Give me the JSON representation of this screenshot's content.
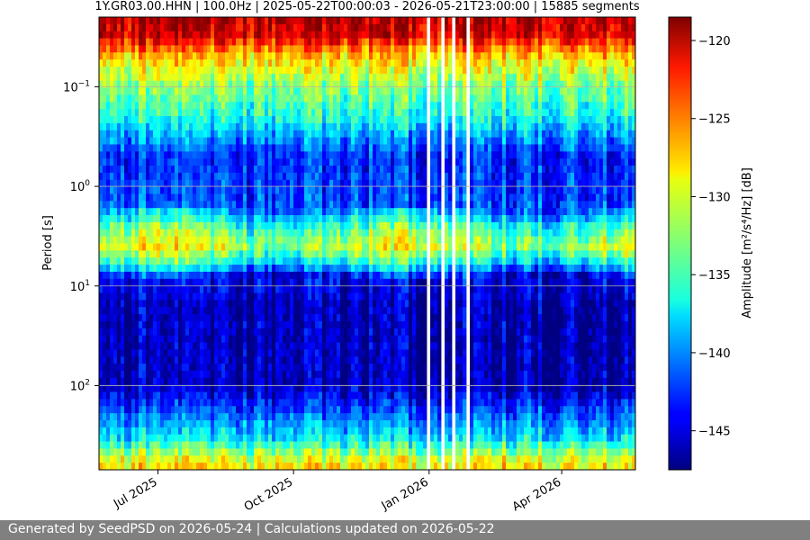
{
  "chart_data": {
    "type": "heatmap",
    "title": "1Y.GR03.00.HHN | 100.0Hz | 2025-05-22T00:00:03 - 2026-05-21T23:00:00 | 15885 segments",
    "ylabel": "Period [s]",
    "y_scale": "log",
    "y_inverted": true,
    "ylim": [
      0.02,
      700
    ],
    "y_ticks": [
      {
        "value": 0.1,
        "base": "10",
        "exp": "−1"
      },
      {
        "value": 1,
        "base": "10",
        "exp": "0"
      },
      {
        "value": 10,
        "base": "10",
        "exp": "1"
      },
      {
        "value": 100,
        "base": "10",
        "exp": "2"
      }
    ],
    "x_start": "2025-05-22",
    "x_end": "2026-05-21",
    "x_ticks": [
      {
        "date": "2025-07-01",
        "label": "Jul 2025"
      },
      {
        "date": "2025-10-01",
        "label": "Oct 2025"
      },
      {
        "date": "2026-01-01",
        "label": "Jan 2026"
      },
      {
        "date": "2026-04-01",
        "label": "Apr 2026"
      }
    ],
    "grid": true,
    "gaps": [
      [
        "2025-12-31",
        "2026-01-02"
      ],
      [
        "2026-01-09",
        "2026-01-11"
      ],
      [
        "2026-01-17",
        "2026-01-19"
      ],
      [
        "2026-01-25",
        "2026-01-28"
      ]
    ],
    "colorbar": {
      "label": "Amplitude [m²/s⁴/Hz] [dB]",
      "colormap": "jet",
      "range": [
        -147.5,
        -118.5
      ],
      "ticks": [
        -120,
        -125,
        -130,
        -135,
        -140,
        -145
      ]
    },
    "psd_profile_db": [
      {
        "period": 0.02,
        "db": -120
      },
      {
        "period": 0.03,
        "db": -121
      },
      {
        "period": 0.05,
        "db": -128
      },
      {
        "period": 0.1,
        "db": -133
      },
      {
        "period": 0.2,
        "db": -136
      },
      {
        "period": 0.5,
        "db": -143
      },
      {
        "period": 1.5,
        "db": -142
      },
      {
        "period": 2.5,
        "db": -135
      },
      {
        "period": 4,
        "db": -131
      },
      {
        "period": 6,
        "db": -137
      },
      {
        "period": 8,
        "db": -144
      },
      {
        "period": 15,
        "db": -146
      },
      {
        "period": 100,
        "db": -146
      },
      {
        "period": 200,
        "db": -141
      },
      {
        "period": 350,
        "db": -137
      },
      {
        "period": 600,
        "db": -129
      }
    ]
  },
  "footer": {
    "text": "Generated by SeedPSD on 2026-05-24 | Calculations updated on 2026-05-22"
  }
}
